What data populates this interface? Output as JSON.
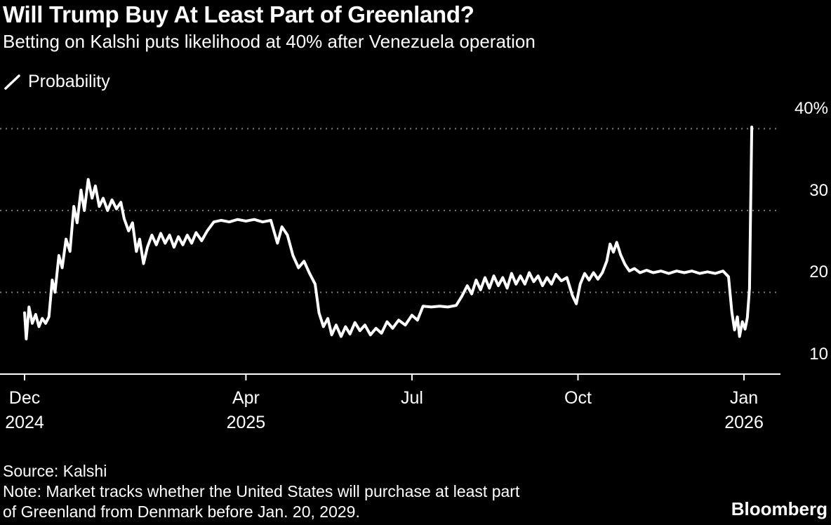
{
  "header": {
    "title": "Will Trump Buy At Least Part of Greenland?",
    "subtitle": "Betting on Kalshi puts likelihood at 40% after Venezuela operation"
  },
  "legend": {
    "label": "Probability"
  },
  "footer": {
    "source": "Source: Kalshi",
    "note_line1": "Note: Market tracks whether the United States will purchase at least part",
    "note_line2": "of Greenland from Denmark before Jan. 20, 2029.",
    "brand": "Bloomberg"
  },
  "colors": {
    "background": "#000000",
    "text": "#ffffff",
    "line": "#ffffff",
    "grid": "#7a7a7a",
    "axis": "#ffffff"
  },
  "chart_data": {
    "type": "line",
    "title": "Will Trump Buy At Least Part of Greenland?",
    "subtitle": "Betting on Kalshi puts likelihood at 40% after Venezuela operation",
    "grid": "dotted-horizontal",
    "legend_position": "top-left",
    "x_axis": {
      "unit": "months since Dec 2024",
      "range": [
        0,
        13.35
      ],
      "ticks": [
        {
          "pos": 0,
          "label": "Dec",
          "sub": "2024"
        },
        {
          "pos": 4,
          "label": "Apr",
          "sub": "2025"
        },
        {
          "pos": 7,
          "label": "Jul"
        },
        {
          "pos": 10,
          "label": "Oct"
        },
        {
          "pos": 13,
          "label": "Jan",
          "sub": "2026"
        }
      ]
    },
    "y_axis": {
      "unit": "%",
      "range": [
        10,
        40
      ],
      "ticks": [
        {
          "value": 40,
          "label": "40%"
        },
        {
          "value": 30,
          "label": "30"
        },
        {
          "value": 20,
          "label": "20"
        },
        {
          "value": 10,
          "label": "10"
        }
      ]
    },
    "series": [
      {
        "name": "Probability",
        "unit": "%",
        "last_value": 40,
        "points": [
          [
            0,
            17.5
          ],
          [
            0.03,
            14.3
          ],
          [
            0.08,
            18.2
          ],
          [
            0.14,
            16.2
          ],
          [
            0.2,
            17.3
          ],
          [
            0.26,
            15.8
          ],
          [
            0.32,
            16.8
          ],
          [
            0.38,
            16.2
          ],
          [
            0.44,
            17
          ],
          [
            0.5,
            21.5
          ],
          [
            0.55,
            20
          ],
          [
            0.62,
            24.5
          ],
          [
            0.68,
            23
          ],
          [
            0.75,
            26.5
          ],
          [
            0.82,
            25
          ],
          [
            0.89,
            30.5
          ],
          [
            0.95,
            28.5
          ],
          [
            1.02,
            32.5
          ],
          [
            1.08,
            30
          ],
          [
            1.15,
            33.8
          ],
          [
            1.22,
            31.5
          ],
          [
            1.28,
            33
          ],
          [
            1.35,
            30.5
          ],
          [
            1.42,
            31.5
          ],
          [
            1.5,
            30
          ],
          [
            1.58,
            31.3
          ],
          [
            1.66,
            30.2
          ],
          [
            1.74,
            31
          ],
          [
            1.8,
            29
          ],
          [
            1.88,
            27.5
          ],
          [
            1.95,
            28.5
          ],
          [
            2.02,
            25
          ],
          [
            2.08,
            26.5
          ],
          [
            2.15,
            23.5
          ],
          [
            2.22,
            25.5
          ],
          [
            2.3,
            27
          ],
          [
            2.38,
            25.8
          ],
          [
            2.46,
            27.2
          ],
          [
            2.54,
            26
          ],
          [
            2.62,
            27
          ],
          [
            2.7,
            25.5
          ],
          [
            2.78,
            26.8
          ],
          [
            2.86,
            25.8
          ],
          [
            2.94,
            27
          ],
          [
            3.02,
            26
          ],
          [
            3.1,
            27.3
          ],
          [
            3.2,
            26.3
          ],
          [
            3.3,
            27.5
          ],
          [
            3.42,
            28.6
          ],
          [
            3.55,
            28.8
          ],
          [
            3.7,
            28.6
          ],
          [
            3.85,
            28.9
          ],
          [
            4,
            28.7
          ],
          [
            4.15,
            28.9
          ],
          [
            4.3,
            28.6
          ],
          [
            4.45,
            28.8
          ],
          [
            4.57,
            26
          ],
          [
            4.65,
            28
          ],
          [
            4.75,
            27
          ],
          [
            4.85,
            24.5
          ],
          [
            4.95,
            23
          ],
          [
            5.05,
            23.8
          ],
          [
            5.15,
            22.3
          ],
          [
            5.25,
            21
          ],
          [
            5.32,
            17.5
          ],
          [
            5.4,
            15.8
          ],
          [
            5.48,
            16.8
          ],
          [
            5.55,
            14.8
          ],
          [
            5.63,
            16
          ],
          [
            5.72,
            14.6
          ],
          [
            5.8,
            15.8
          ],
          [
            5.88,
            14.9
          ],
          [
            5.97,
            16.3
          ],
          [
            6.06,
            15.3
          ],
          [
            6.15,
            16
          ],
          [
            6.25,
            14.8
          ],
          [
            6.35,
            15.6
          ],
          [
            6.45,
            15
          ],
          [
            6.55,
            16.4
          ],
          [
            6.65,
            15.6
          ],
          [
            6.76,
            16.6
          ],
          [
            6.88,
            16
          ],
          [
            7,
            17.2
          ],
          [
            7.1,
            16.6
          ],
          [
            7.2,
            18.3
          ],
          [
            7.35,
            18.2
          ],
          [
            7.5,
            18.3
          ],
          [
            7.65,
            18.2
          ],
          [
            7.8,
            18.4
          ],
          [
            7.9,
            19.5
          ],
          [
            8,
            20.8
          ],
          [
            8.08,
            19.8
          ],
          [
            8.16,
            21.5
          ],
          [
            8.24,
            20.3
          ],
          [
            8.32,
            21.8
          ],
          [
            8.4,
            20.5
          ],
          [
            8.48,
            22
          ],
          [
            8.56,
            20.8
          ],
          [
            8.64,
            21.8
          ],
          [
            8.72,
            20.5
          ],
          [
            8.8,
            22.3
          ],
          [
            8.88,
            21
          ],
          [
            8.96,
            22
          ],
          [
            9.04,
            21
          ],
          [
            9.12,
            22.4
          ],
          [
            9.2,
            21.3
          ],
          [
            9.28,
            22
          ],
          [
            9.36,
            20.8
          ],
          [
            9.44,
            21.8
          ],
          [
            9.52,
            21
          ],
          [
            9.6,
            22.2
          ],
          [
            9.7,
            21.4
          ],
          [
            9.8,
            21.8
          ],
          [
            9.9,
            19.6
          ],
          [
            9.97,
            18.6
          ],
          [
            10.04,
            21
          ],
          [
            10.12,
            22.3
          ],
          [
            10.2,
            21.5
          ],
          [
            10.28,
            22.4
          ],
          [
            10.36,
            21.6
          ],
          [
            10.44,
            22.4
          ],
          [
            10.52,
            23.8
          ],
          [
            10.58,
            25.9
          ],
          [
            10.64,
            24.9
          ],
          [
            10.7,
            26.1
          ],
          [
            10.77,
            24.6
          ],
          [
            10.85,
            23.4
          ],
          [
            10.93,
            22.6
          ],
          [
            11.02,
            22.9
          ],
          [
            11.12,
            22.4
          ],
          [
            11.24,
            22.7
          ],
          [
            11.36,
            22.4
          ],
          [
            11.5,
            22.6
          ],
          [
            11.64,
            22.3
          ],
          [
            11.78,
            22.6
          ],
          [
            11.92,
            22.4
          ],
          [
            12.06,
            22.6
          ],
          [
            12.2,
            22.3
          ],
          [
            12.34,
            22.5
          ],
          [
            12.48,
            22.3
          ],
          [
            12.62,
            22.6
          ],
          [
            12.72,
            21.9
          ],
          [
            12.78,
            17.6
          ],
          [
            12.83,
            15.4
          ],
          [
            12.88,
            17
          ],
          [
            12.92,
            14.6
          ],
          [
            12.97,
            16.4
          ],
          [
            13.02,
            15.5
          ],
          [
            13.06,
            16.9
          ],
          [
            13.1,
            20.5
          ],
          [
            13.14,
            40.2
          ]
        ]
      }
    ]
  }
}
